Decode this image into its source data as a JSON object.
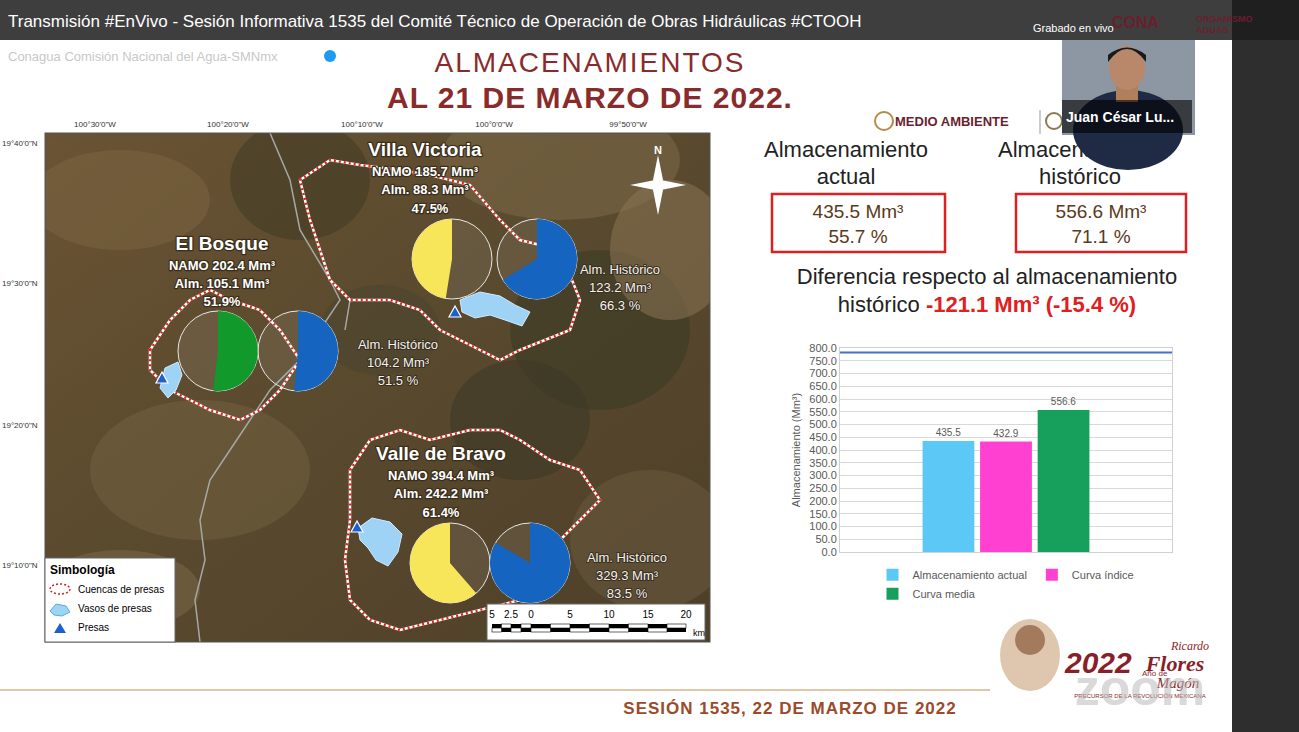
{
  "stream": {
    "title": "Transmisión #EnVivo - Sesión Informativa 1535 del Comité Técnico de Operación de Obras Hidráulicas #CTOOH",
    "recorded": "Grabado en vivo",
    "channel": "Conagua Comisión Nacional del Agua-SMNmx",
    "presenter": "Juan César Lu...",
    "org_logo": [
      "CONA",
      "ORGANISMO",
      "AGUAS"
    ]
  },
  "slide": {
    "title": [
      "ALMACENAMIENTOS",
      "AL 21 DE MARZO DE 2022."
    ],
    "logo": "MEDIO AMBIENTE",
    "footer": "SESIÓN 1535, 22 DE MARZO DE 2022",
    "badge": {
      "year": "2022",
      "prefix": "Año de",
      "name": [
        "Ricardo",
        "Flores",
        "Magón"
      ],
      "caption": "PRECURSOR DE LA REVOLUCIÓN MEXICANA"
    },
    "watermark": "zoom"
  },
  "map": {
    "lon_labels": [
      "100°30'0\"W",
      "100°20'0\"W",
      "100°10'0\"W",
      "100°0'0\"W",
      "99°50'0\"W"
    ],
    "lat_labels": [
      "19°40'0\"N",
      "19°30'0\"N",
      "19°20'0\"N",
      "19°10'0\"N"
    ],
    "north": "N",
    "dams": [
      {
        "name": "El Bosque",
        "namo": "NAMO 202.4 Mm³",
        "alm": "Alm. 105.1 Mm³",
        "pct": {
          "value": 51.9,
          "label": "51.9%",
          "color": "#119a2b"
        },
        "hist_title": "Alm. Histórico",
        "hist_value": "104.2 Mm³",
        "hist_pct": {
          "value": 51.5,
          "label": "51.5 %",
          "color": "#1565c0"
        }
      },
      {
        "name": "Villa Victoria",
        "namo": "NAMO 185.7 Mm³",
        "alm": "Alm. 88.3 Mm³",
        "pct": {
          "value": 47.5,
          "label": "47.5%",
          "color": "#f7e65a"
        },
        "hist_title": "Alm. Histórico",
        "hist_value": "123.2 Mm³",
        "hist_pct": {
          "value": 66.3,
          "label": "66.3 %",
          "color": "#1565c0"
        }
      },
      {
        "name": "Valle de Bravo",
        "namo": "NAMO 394.4 Mm³",
        "alm": "Alm. 242.2 Mm³",
        "pct": {
          "value": 61.4,
          "label": "61.4%",
          "color": "#f7e65a"
        },
        "hist_title": "Alm. Histórico",
        "hist_value": "329.3 Mm³",
        "hist_pct": {
          "value": 83.5,
          "label": "83.5 %",
          "color": "#1565c0"
        }
      }
    ],
    "legend": {
      "title": "Simbología",
      "items": [
        "Cuencas de presas",
        "Vasos de presas",
        "Presas"
      ]
    },
    "scale": {
      "labels": [
        "5",
        "2.5",
        "0",
        "5",
        "10",
        "15",
        "20"
      ],
      "unit": "km"
    }
  },
  "summary": {
    "current": {
      "title": [
        "Almacenamiento",
        "actual"
      ],
      "volume": "435.5 Mm³",
      "percent": "55.7 %"
    },
    "historical": {
      "title": [
        "Almacenamiento",
        "histórico"
      ],
      "volume": "556.6 Mm³",
      "percent": "71.1 %"
    },
    "difference": {
      "text": [
        "Diferencia respecto al almacenamiento",
        "histórico"
      ],
      "value": "-121.1 Mm³ (-15.4 %)"
    }
  },
  "chart_data": {
    "type": "bar",
    "y_label": "Almacenamiento (Mm³)",
    "series": [
      {
        "name": "Almacenamiento actual",
        "color": "#5bc8f5",
        "values": [
          435.5
        ]
      },
      {
        "name": "Curva índice",
        "color": "#ff40d0",
        "values": [
          432.9
        ]
      },
      {
        "name": "Curva media",
        "color": "#16a05c",
        "values": [
          556.6
        ]
      }
    ],
    "ylim": [
      0,
      800
    ],
    "yticks": [
      {
        "value": 0,
        "label": "0.0"
      },
      {
        "value": 50,
        "label": "50.0"
      },
      {
        "value": 100,
        "label": "100.0"
      },
      {
        "value": 150,
        "label": "150.0"
      },
      {
        "value": 200,
        "label": "200.0"
      },
      {
        "value": 250,
        "label": "250.0"
      },
      {
        "value": 300,
        "label": "300.0"
      },
      {
        "value": 350,
        "label": "350.0"
      },
      {
        "value": 400,
        "label": "400.0"
      },
      {
        "value": 450,
        "label": "450.0"
      },
      {
        "value": 500,
        "label": "500.0"
      },
      {
        "value": 550,
        "label": "550.0"
      },
      {
        "value": 600,
        "label": "600.0"
      },
      {
        "value": 650,
        "label": "650.0"
      },
      {
        "value": 700,
        "label": "700.0"
      },
      {
        "value": 750,
        "label": "750.0"
      },
      {
        "value": 800,
        "label": "800.0"
      }
    ],
    "grid": true,
    "data_labels": true,
    "legend": "bottom",
    "tick_labels": "y",
    "capacity": 782.5
  }
}
